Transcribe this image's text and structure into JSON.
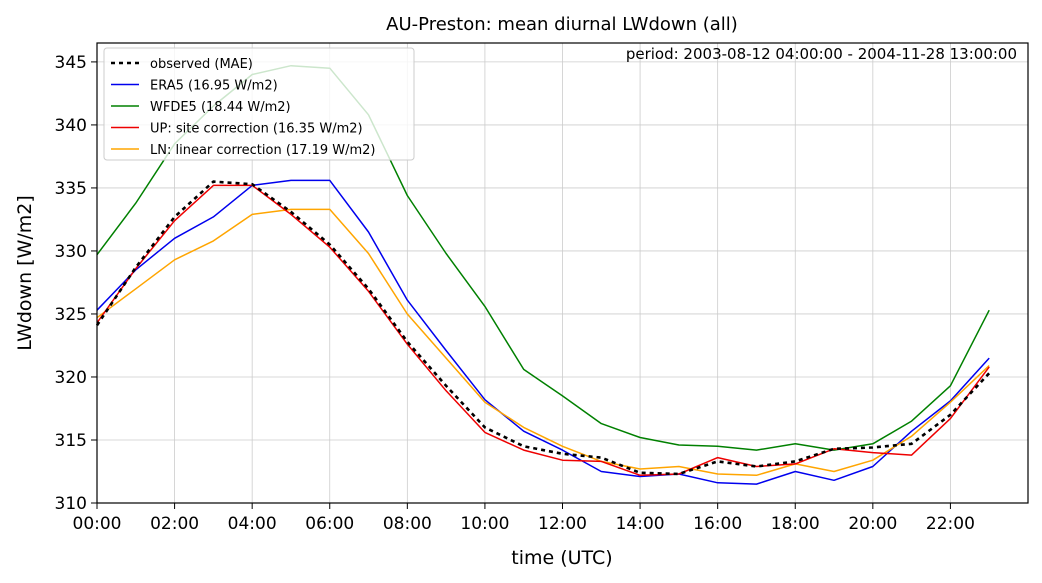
{
  "chart_data": {
    "type": "line",
    "title": "AU-Preston: mean diurnal LWdown (all)",
    "annotation": "period: 2003-08-12 04:00:00 - 2004-11-28 13:00:00",
    "xlabel": "time (UTC)",
    "ylabel": "LWdown [W/m2]",
    "xlim": [
      0,
      24
    ],
    "ylim": [
      310,
      346.5
    ],
    "grid": true,
    "legend_position": "top-left",
    "x_ticks": [
      0,
      2,
      4,
      6,
      8,
      10,
      12,
      14,
      16,
      18,
      20,
      22
    ],
    "x_tick_labels": [
      "00:00",
      "02:00",
      "04:00",
      "06:00",
      "08:00",
      "10:00",
      "12:00",
      "14:00",
      "16:00",
      "18:00",
      "20:00",
      "22:00"
    ],
    "y_ticks": [
      310,
      315,
      320,
      325,
      330,
      335,
      340,
      345
    ],
    "y_tick_labels": [
      "310",
      "315",
      "320",
      "325",
      "330",
      "335",
      "340",
      "345"
    ],
    "x": [
      0,
      1,
      2,
      3,
      4,
      5,
      6,
      7,
      8,
      9,
      10,
      11,
      12,
      13,
      14,
      15,
      16,
      17,
      18,
      19,
      20,
      21,
      22,
      23
    ],
    "series": [
      {
        "name": "observed (MAE)",
        "color": "#000000",
        "dashed": true,
        "values": [
          324.1,
          328.7,
          332.7,
          335.5,
          335.3,
          333.1,
          330.5,
          327.0,
          322.8,
          319.3,
          316.0,
          314.5,
          313.9,
          313.6,
          312.4,
          312.3,
          313.3,
          312.9,
          313.3,
          314.3,
          314.4,
          314.7,
          317.0,
          320.3
        ]
      },
      {
        "name": "ERA5 (16.95 W/m2)",
        "color": "#0000ee",
        "dashed": false,
        "values": [
          325.3,
          328.5,
          331.0,
          332.7,
          335.2,
          335.6,
          335.6,
          331.5,
          326.1,
          322.1,
          318.2,
          315.7,
          314.2,
          312.5,
          312.1,
          312.3,
          311.6,
          311.5,
          312.5,
          311.8,
          312.9,
          315.7,
          318.1,
          321.5
        ]
      },
      {
        "name": "WFDE5 (18.44 W/m2)",
        "color": "#008000",
        "dashed": false,
        "values": [
          329.7,
          333.8,
          338.5,
          341.5,
          344.0,
          344.7,
          344.5,
          340.8,
          334.4,
          329.8,
          325.6,
          320.6,
          318.5,
          316.3,
          315.2,
          314.6,
          314.5,
          314.2,
          314.7,
          314.2,
          314.7,
          316.5,
          319.3,
          325.3
        ]
      },
      {
        "name": "UP: site correction (16.35 W/m2)",
        "color": "#ee0000",
        "dashed": false,
        "values": [
          324.3,
          328.6,
          332.4,
          335.2,
          335.2,
          332.9,
          330.3,
          326.8,
          322.6,
          318.9,
          315.6,
          314.2,
          313.4,
          313.3,
          312.2,
          312.3,
          313.6,
          312.9,
          313.1,
          314.3,
          314.0,
          313.8,
          316.7,
          320.8
        ]
      },
      {
        "name": "LN: linear correction (17.19 W/m2)",
        "color": "#ffa500",
        "dashed": false,
        "values": [
          324.7,
          327.0,
          329.3,
          330.8,
          332.9,
          333.3,
          333.3,
          329.8,
          325.0,
          321.5,
          318.0,
          316.0,
          314.5,
          313.3,
          312.7,
          312.9,
          312.3,
          312.2,
          313.1,
          312.5,
          313.4,
          315.3,
          318.0,
          320.9
        ]
      }
    ]
  }
}
